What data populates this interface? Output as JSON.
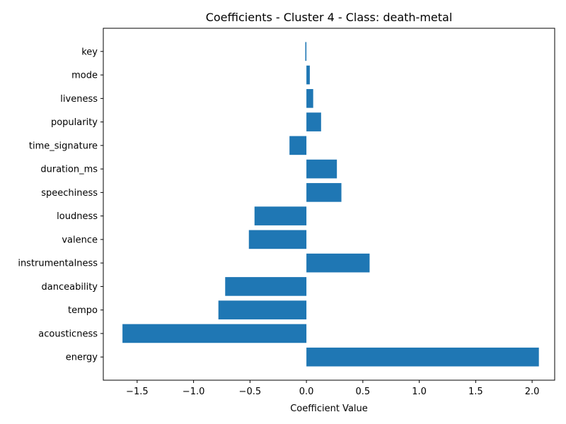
{
  "chart_data": {
    "type": "bar",
    "orientation": "horizontal",
    "title": "Coefficients - Cluster 4 - Class: death-metal",
    "xlabel": "Coefficient Value",
    "ylabel": "",
    "categories": [
      "energy",
      "acousticness",
      "tempo",
      "danceability",
      "instrumentalness",
      "valence",
      "loudness",
      "speechiness",
      "duration_ms",
      "time_signature",
      "popularity",
      "liveness",
      "mode",
      "key"
    ],
    "values": [
      2.06,
      -1.63,
      -0.78,
      -0.72,
      0.56,
      -0.51,
      -0.46,
      0.31,
      0.27,
      -0.15,
      0.13,
      0.06,
      0.03,
      -0.01
    ],
    "xlim": [
      -1.8,
      2.2
    ],
    "xticks": [
      -1.5,
      -1.0,
      -0.5,
      0.0,
      0.5,
      1.0,
      1.5,
      2.0
    ],
    "xtick_labels": [
      "−1.5",
      "−1.0",
      "−0.5",
      "0.0",
      "0.5",
      "1.0",
      "1.5",
      "2.0"
    ],
    "bar_color": "#1f77b4",
    "grid": false,
    "legend": "none"
  }
}
